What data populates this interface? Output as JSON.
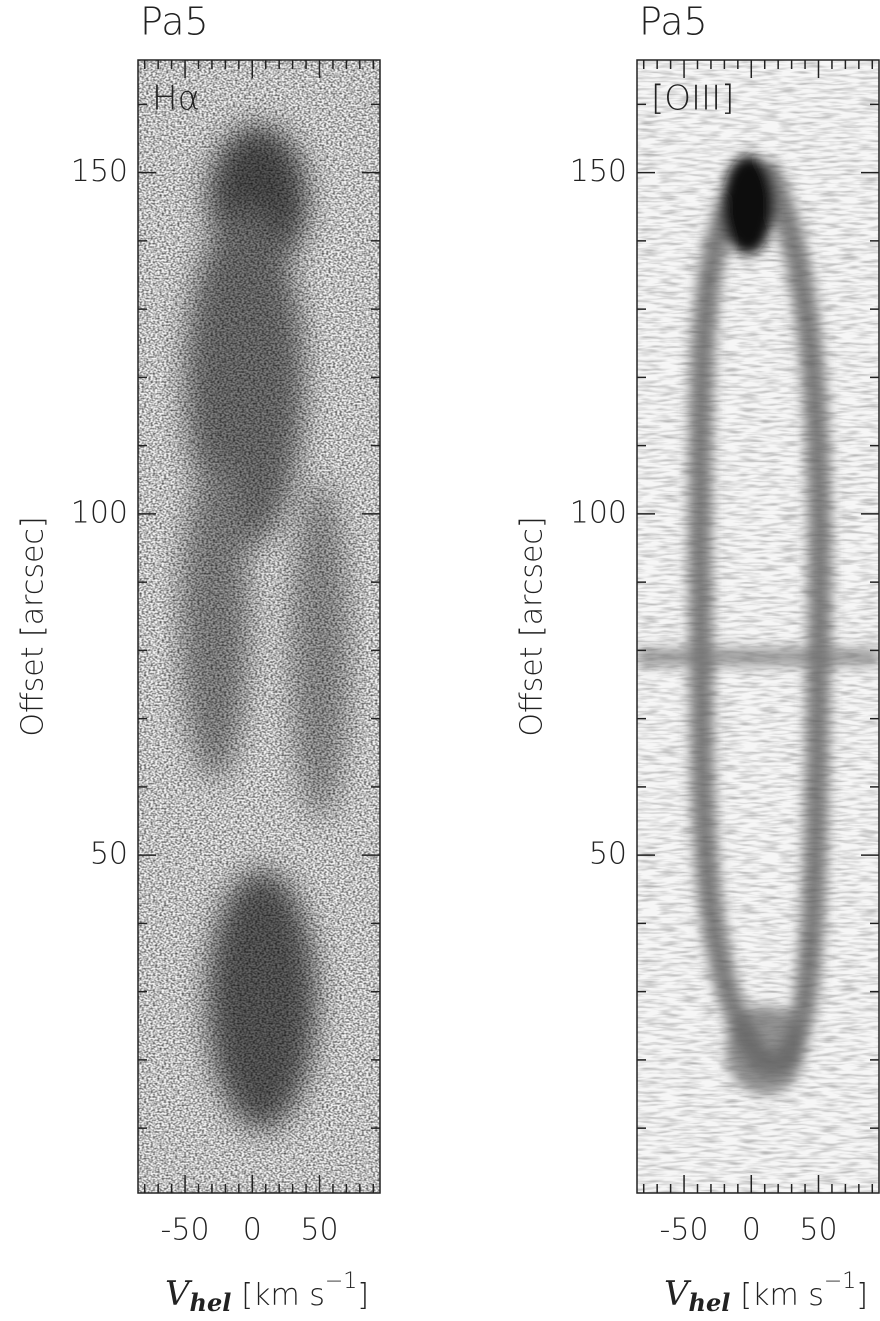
{
  "chart_data": [
    {
      "type": "heatmap",
      "title": "Pa5",
      "annotation": "Hα",
      "xlabel": {
        "symbol": "V",
        "subscript": "hel",
        "unit": "[km s",
        "exponent": "−1",
        "close": "]"
      },
      "ylabel": "Offset [arcsec]",
      "xlim": [
        -85,
        95
      ],
      "ylim": [
        0.5,
        166.5
      ],
      "xticks": [
        -50,
        0,
        50
      ],
      "yticks": [
        50,
        100,
        150
      ],
      "xminorticks": [
        -80,
        -70,
        -60,
        -40,
        -30,
        -20,
        -10,
        10,
        20,
        30,
        40,
        60,
        70,
        80,
        90
      ],
      "yminorticks": [
        10,
        20,
        30,
        40,
        60,
        70,
        80,
        90,
        110,
        120,
        130,
        140,
        160
      ]
    },
    {
      "type": "heatmap",
      "title": "Pa5",
      "annotation": "[OIII]",
      "xlabel": {
        "symbol": "V",
        "subscript": "hel",
        "unit": "[km s",
        "exponent": "−1",
        "close": "]"
      },
      "ylabel": "Offset [arcsec]",
      "xlim": [
        -85,
        95
      ],
      "ylim": [
        0.5,
        166.5
      ],
      "xticks": [
        -50,
        0,
        50
      ],
      "yticks": [
        50,
        100,
        150
      ],
      "xminorticks": [
        -80,
        -70,
        -60,
        -40,
        -30,
        -20,
        -10,
        10,
        20,
        30,
        40,
        60,
        70,
        80,
        90
      ],
      "yminorticks": [
        10,
        20,
        30,
        40,
        60,
        70,
        80,
        90,
        110,
        120,
        130,
        140,
        160
      ]
    }
  ]
}
